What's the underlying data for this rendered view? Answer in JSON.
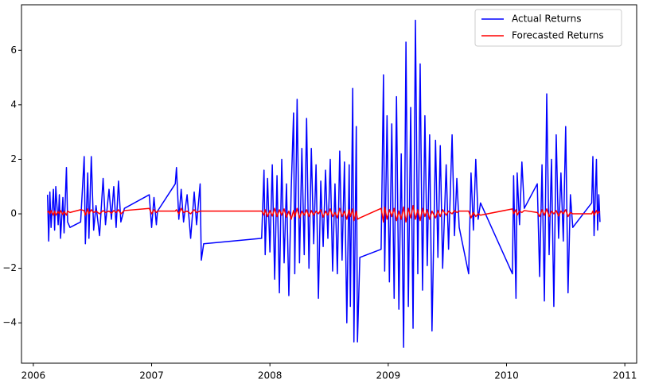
{
  "chart_data": {
    "type": "line",
    "x": [
      2006.12,
      2006.13,
      2006.14,
      2006.15,
      2006.17,
      2006.18,
      2006.19,
      2006.21,
      2006.22,
      2006.23,
      2006.25,
      2006.26,
      2006.28,
      2006.29,
      2006.31,
      2006.4,
      2006.43,
      2006.44,
      2006.46,
      2006.47,
      2006.49,
      2006.51,
      2006.53,
      2006.56,
      2006.59,
      2006.61,
      2006.64,
      2006.66,
      2006.68,
      2006.7,
      2006.72,
      2006.74,
      2006.77,
      2006.98,
      2007.0,
      2007.02,
      2007.04,
      2007.05,
      2007.2,
      2007.21,
      2007.23,
      2007.25,
      2007.27,
      2007.3,
      2007.33,
      2007.36,
      2007.38,
      2007.41,
      2007.42,
      2007.44,
      2007.93,
      2007.95,
      2007.96,
      2007.98,
      2008.0,
      2008.02,
      2008.04,
      2008.06,
      2008.08,
      2008.1,
      2008.12,
      2008.14,
      2008.16,
      2008.18,
      2008.2,
      2008.21,
      2008.23,
      2008.25,
      2008.27,
      2008.29,
      2008.31,
      2008.33,
      2008.35,
      2008.37,
      2008.39,
      2008.41,
      2008.43,
      2008.45,
      2008.47,
      2008.49,
      2008.51,
      2008.53,
      2008.55,
      2008.57,
      2008.59,
      2008.61,
      2008.63,
      2008.65,
      2008.67,
      2008.68,
      2008.7,
      2008.71,
      2008.73,
      2008.74,
      2008.76,
      2008.94,
      2008.96,
      2008.97,
      2008.99,
      2009.01,
      2009.03,
      2009.05,
      2009.07,
      2009.09,
      2009.11,
      2009.13,
      2009.15,
      2009.17,
      2009.19,
      2009.21,
      2009.23,
      2009.25,
      2009.27,
      2009.29,
      2009.31,
      2009.33,
      2009.35,
      2009.37,
      2009.4,
      2009.42,
      2009.44,
      2009.46,
      2009.49,
      2009.51,
      2009.54,
      2009.56,
      2009.58,
      2009.6,
      2009.68,
      2009.7,
      2009.72,
      2009.74,
      2009.76,
      2009.78,
      2010.05,
      2010.06,
      2010.08,
      2010.09,
      2010.11,
      2010.13,
      2010.15,
      2010.26,
      2010.28,
      2010.3,
      2010.32,
      2010.34,
      2010.36,
      2010.38,
      2010.4,
      2010.42,
      2010.44,
      2010.46,
      2010.48,
      2010.5,
      2010.52,
      2010.54,
      2010.56,
      2010.72,
      2010.73,
      2010.74,
      2010.76,
      2010.77,
      2010.78,
      2010.79
    ],
    "series": [
      {
        "name": "Actual Returns",
        "color": "#0000ff",
        "values": [
          0.7,
          -1.0,
          0.8,
          -0.5,
          0.9,
          -0.6,
          1.0,
          -0.4,
          0.7,
          -0.9,
          0.6,
          -0.7,
          1.7,
          -0.3,
          -0.5,
          -0.3,
          2.1,
          -1.1,
          1.5,
          -0.9,
          2.1,
          -0.6,
          0.3,
          -0.8,
          1.3,
          -0.4,
          0.9,
          -0.2,
          1.0,
          -0.5,
          1.2,
          -0.3,
          0.2,
          0.7,
          -0.5,
          0.6,
          -0.4,
          0.1,
          1.1,
          1.7,
          -0.2,
          0.9,
          -0.3,
          0.7,
          -0.9,
          0.8,
          -0.4,
          1.1,
          -1.7,
          -1.1,
          -0.9,
          1.6,
          -1.5,
          1.3,
          -1.4,
          1.8,
          -2.4,
          1.4,
          -2.9,
          2.0,
          -1.8,
          1.1,
          -3.0,
          0.9,
          3.7,
          -2.2,
          4.2,
          -1.8,
          2.4,
          -1.5,
          3.5,
          -2.0,
          2.4,
          -1.1,
          1.8,
          -3.1,
          1.2,
          -1.2,
          1.6,
          -0.9,
          2.0,
          -2.1,
          1.1,
          -2.2,
          2.3,
          -1.7,
          1.9,
          -4.0,
          1.8,
          -3.4,
          4.6,
          -4.7,
          3.2,
          -4.7,
          -1.6,
          -1.3,
          5.1,
          -2.1,
          3.6,
          -2.5,
          3.3,
          -3.1,
          4.3,
          -3.5,
          2.2,
          -4.9,
          6.3,
          -3.4,
          3.9,
          -4.2,
          7.1,
          -2.2,
          5.5,
          -2.8,
          3.6,
          -1.9,
          2.9,
          -4.3,
          2.7,
          -1.6,
          2.5,
          -2.0,
          1.8,
          -1.3,
          2.9,
          -0.8,
          1.3,
          -0.5,
          -2.2,
          1.5,
          -0.6,
          2.0,
          -0.2,
          0.4,
          -2.2,
          1.4,
          -3.1,
          1.5,
          -0.4,
          1.9,
          0.2,
          1.1,
          -2.3,
          1.8,
          -3.2,
          4.4,
          -1.5,
          2.0,
          -3.4,
          2.9,
          -0.9,
          1.5,
          -1.0,
          3.2,
          -2.9,
          0.7,
          -0.5,
          0.4,
          2.1,
          -0.8,
          2.0,
          -0.6,
          0.7,
          -0.3
        ]
      },
      {
        "name": "Forecasted Returns",
        "color": "#ff0000",
        "values": [
          0.05,
          0.1,
          0.0,
          0.12,
          -0.05,
          0.1,
          -0.05,
          0.08,
          0.0,
          0.12,
          -0.03,
          0.09,
          -0.05,
          0.1,
          0.05,
          0.15,
          0.12,
          -0.05,
          0.18,
          0.0,
          0.15,
          0.05,
          0.1,
          0.0,
          0.12,
          0.05,
          0.1,
          0.02,
          0.12,
          0.05,
          0.15,
          0.0,
          0.12,
          0.2,
          0.0,
          0.15,
          0.05,
          0.1,
          0.1,
          0.15,
          0.0,
          0.2,
          0.05,
          0.1,
          0.0,
          0.15,
          0.05,
          0.1,
          0.1,
          0.1,
          0.1,
          -0.05,
          0.15,
          -0.1,
          0.12,
          -0.08,
          0.2,
          -0.1,
          0.15,
          -0.05,
          0.18,
          -0.12,
          0.1,
          -0.2,
          0.12,
          -0.1,
          0.2,
          -0.15,
          0.1,
          -0.05,
          0.15,
          -0.1,
          0.12,
          -0.05,
          0.1,
          0.0,
          0.15,
          -0.12,
          0.1,
          -0.05,
          0.18,
          -0.1,
          0.05,
          -0.15,
          0.2,
          -0.1,
          0.1,
          -0.2,
          0.15,
          -0.1,
          0.18,
          -0.25,
          0.1,
          -0.2,
          -0.15,
          0.2,
          -0.3,
          0.25,
          -0.2,
          0.15,
          -0.1,
          0.2,
          -0.25,
          0.1,
          -0.2,
          0.25,
          -0.3,
          0.2,
          -0.15,
          0.3,
          -0.2,
          0.15,
          -0.25,
          0.2,
          -0.1,
          0.15,
          -0.2,
          0.1,
          -0.15,
          0.12,
          -0.1,
          0.15,
          -0.05,
          0.1,
          0.0,
          0.12,
          0.05,
          0.1,
          0.1,
          -0.15,
          0.05,
          -0.1,
          0.0,
          -0.05,
          0.18,
          0.0,
          0.15,
          -0.05,
          0.1,
          0.05,
          0.12,
          0.05,
          -0.1,
          0.15,
          -0.05,
          0.18,
          -0.1,
          0.1,
          0.0,
          0.12,
          -0.08,
          0.1,
          0.0,
          0.15,
          -0.1,
          0.05,
          0.0,
          0.0,
          0.1,
          -0.05,
          0.12,
          0.0,
          0.08,
          0.05
        ]
      }
    ],
    "xlim": [
      2005.9,
      2011.1
    ],
    "xticks": [
      2006,
      2007,
      2008,
      2009,
      2010,
      2011
    ],
    "ylim": [
      -5.48,
      7.67
    ],
    "yticks": [
      {
        "value": -4,
        "label": "−4"
      },
      {
        "value": -2,
        "label": "−2"
      },
      0,
      2,
      4,
      6
    ],
    "legend": "upper right"
  }
}
